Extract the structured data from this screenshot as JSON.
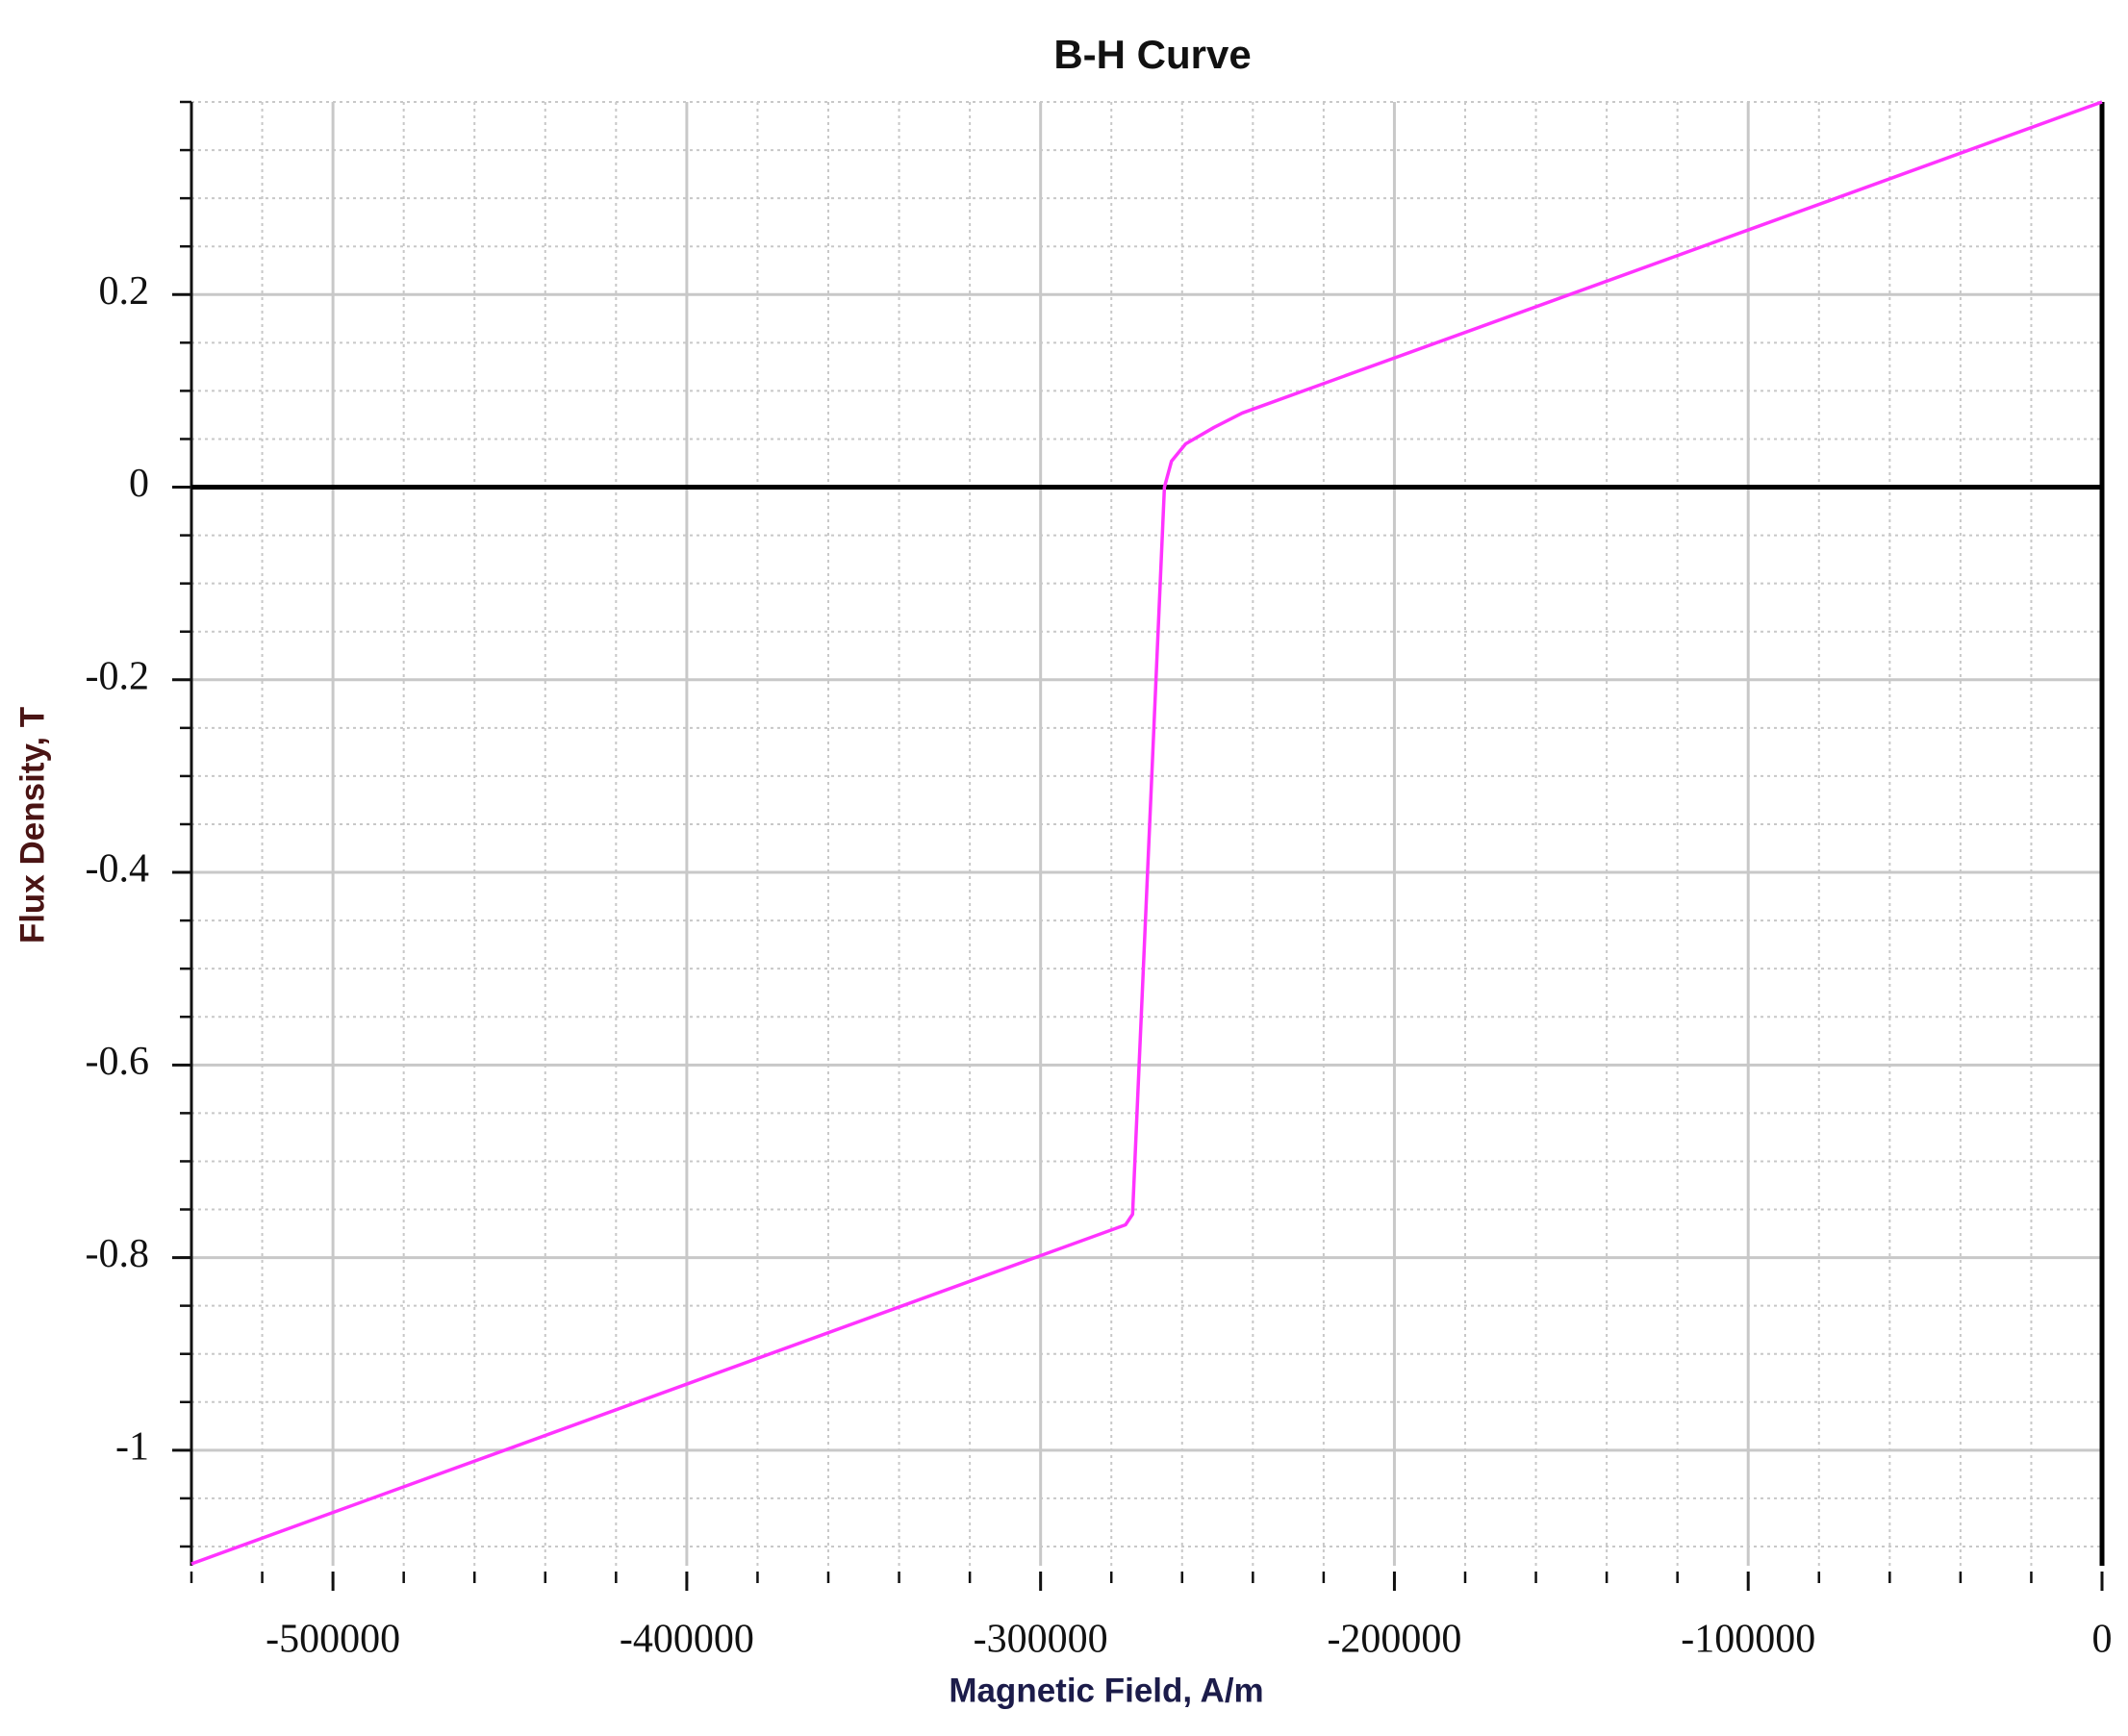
{
  "chart_data": {
    "type": "line",
    "title": "B-H Curve",
    "x_label": "Magnetic Field, A/m",
    "y_label": "Flux Density, T",
    "x": [
      -540000,
      -276000,
      -274000,
      -265000,
      -263000,
      -259000,
      -251000,
      -243000,
      0
    ],
    "series": [
      {
        "color": "#ff33ff",
        "values": [
          -1.118,
          -0.766,
          -0.755,
          0.0,
          0.027,
          0.045,
          0.062,
          0.077,
          0.4
        ]
      }
    ],
    "xlim": [
      -540000,
      0
    ],
    "ylim": [
      -1.12,
      0.4
    ],
    "xticks": [
      -500000,
      -400000,
      -300000,
      -200000,
      -100000,
      0
    ],
    "yticks": [
      -1,
      -0.8,
      -0.6,
      -0.4,
      -0.2,
      0,
      0.2
    ],
    "grid": true
  }
}
